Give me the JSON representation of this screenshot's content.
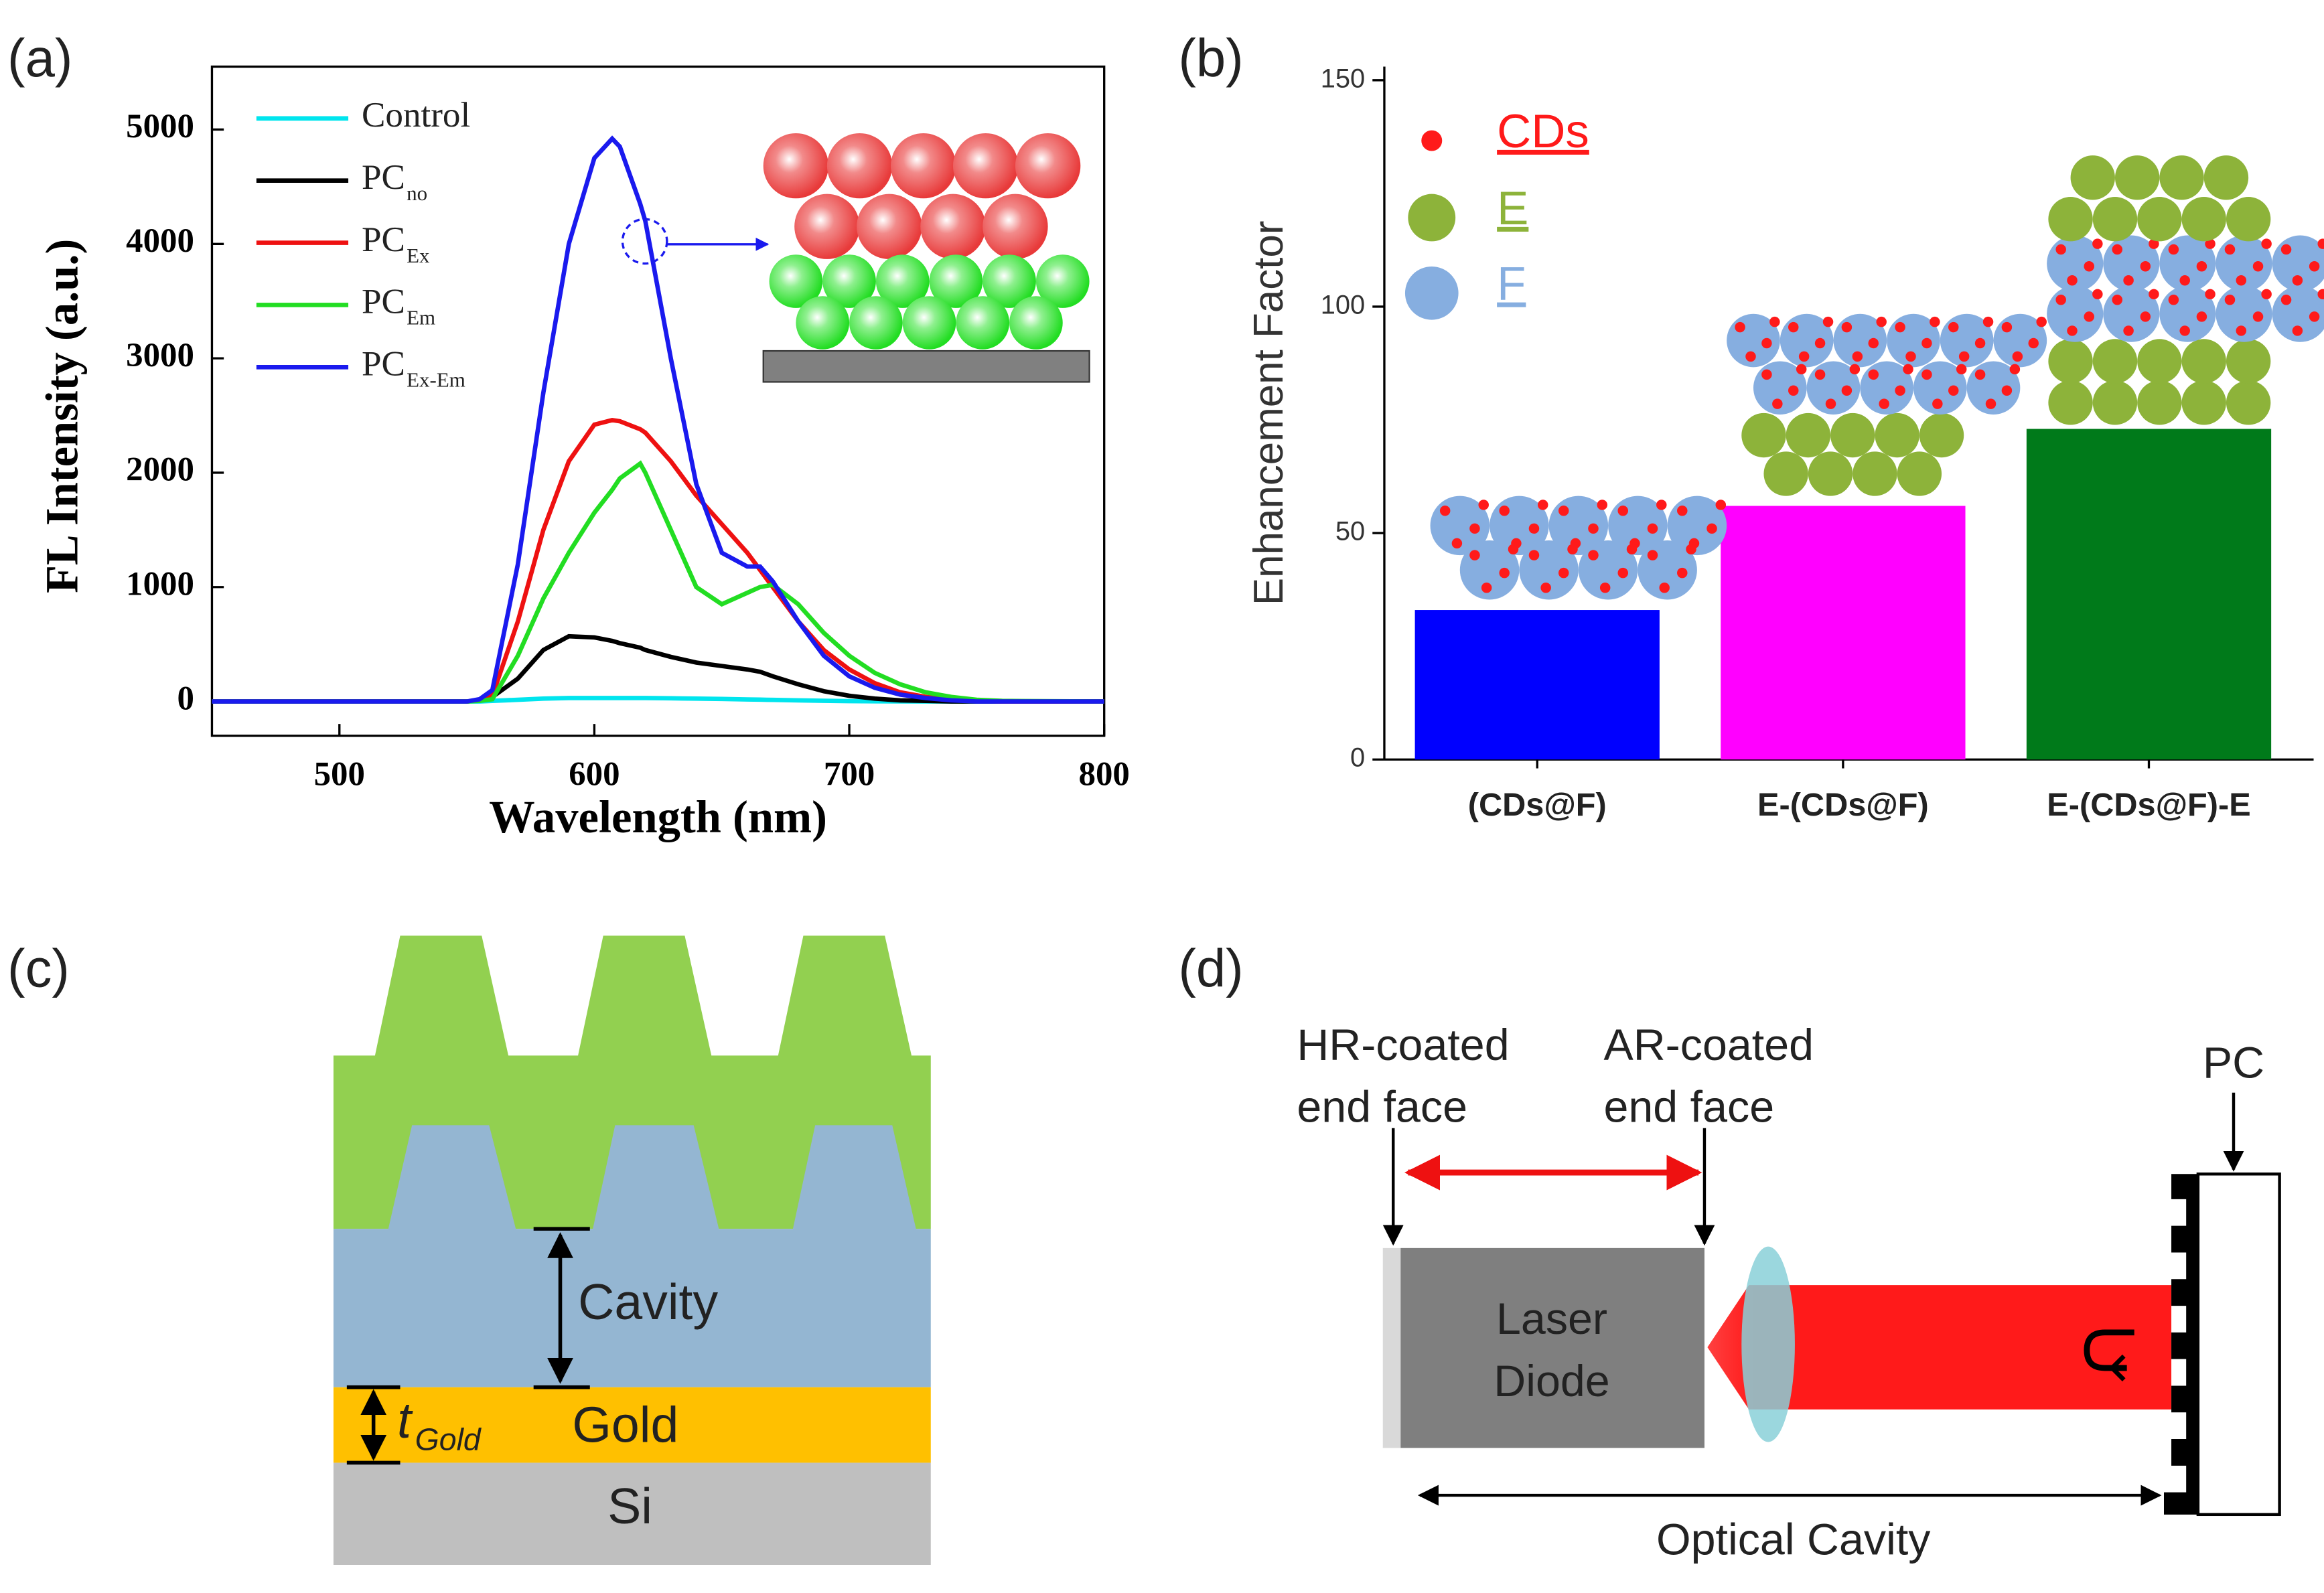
{
  "panel_labels": [
    "(a)",
    "(b)",
    "(c)",
    "(d)"
  ],
  "chart_data": [
    {
      "type": "line",
      "x_label": "Wavelength (nm)",
      "y_label": "FL Intensity (a.u.)",
      "x": [
        450,
        500,
        550,
        555,
        560,
        570,
        580,
        590,
        600,
        607,
        610,
        618,
        620,
        630,
        640,
        650,
        660,
        665,
        670,
        680,
        690,
        700,
        710,
        720,
        730,
        740,
        750,
        760,
        800
      ],
      "series": [
        {
          "name": "Control",
          "color": "#00e5ee",
          "values": [
            0,
            0,
            0,
            0,
            5,
            15,
            25,
            30,
            30,
            30,
            30,
            30,
            30,
            28,
            25,
            22,
            18,
            16,
            14,
            10,
            6,
            3,
            2,
            1,
            0,
            0,
            0,
            0,
            0
          ]
        },
        {
          "name": "PC",
          "subscript": "no",
          "color": "#000000",
          "values": [
            0,
            0,
            0,
            10,
            40,
            200,
            450,
            570,
            560,
            530,
            510,
            470,
            450,
            390,
            340,
            310,
            280,
            260,
            220,
            150,
            90,
            50,
            25,
            10,
            5,
            0,
            0,
            0,
            0
          ]
        },
        {
          "name": "PC",
          "subscript": "Ex",
          "color": "#ee1111",
          "values": [
            0,
            0,
            0,
            10,
            50,
            700,
            1500,
            2100,
            2420,
            2460,
            2450,
            2380,
            2350,
            2100,
            1800,
            1550,
            1300,
            1150,
            1000,
            700,
            450,
            280,
            160,
            80,
            40,
            15,
            5,
            0,
            0
          ]
        },
        {
          "name": "PC",
          "subscript": "Em",
          "color": "#22dd22",
          "values": [
            0,
            0,
            0,
            5,
            20,
            400,
            900,
            1300,
            1650,
            1850,
            1950,
            2080,
            2000,
            1500,
            1000,
            850,
            950,
            1000,
            1020,
            850,
            600,
            400,
            250,
            150,
            80,
            40,
            15,
            5,
            0
          ]
        },
        {
          "name": "PC",
          "subscript": "Ex-Em",
          "color": "#1a1aee",
          "values": [
            0,
            0,
            0,
            20,
            100,
            1200,
            2700,
            4000,
            4750,
            4920,
            4850,
            4350,
            4200,
            3000,
            1900,
            1300,
            1180,
            1180,
            1050,
            700,
            400,
            220,
            120,
            60,
            30,
            10,
            0,
            0,
            0
          ]
        }
      ],
      "xlim": [
        450,
        800
      ],
      "ylim": [
        -300,
        5550
      ],
      "xticks": [
        500,
        600,
        700,
        800
      ],
      "yticks": [
        0,
        1000,
        2000,
        3000,
        4000,
        5000
      ]
    },
    {
      "type": "bar",
      "y_label": "Enhancement Factor",
      "categories": [
        "(CDs@F)",
        "E-(CDs@F)",
        "E-(CDs@F)-E"
      ],
      "values": [
        33,
        56,
        73
      ],
      "colors": [
        "#0000ff",
        "#ff00ff",
        "#007a1a"
      ],
      "ylim": [
        0,
        153
      ],
      "yticks": [
        0,
        50,
        100,
        150
      ],
      "legend": [
        {
          "label": "CDs",
          "color": "#ff1a1a"
        },
        {
          "label": "E",
          "color": "#8db33a"
        },
        {
          "label": "F",
          "color": "#86aee0"
        }
      ]
    }
  ],
  "diagram_c": {
    "cavity": "Cavity",
    "gold": "Gold",
    "si": "Si",
    "thickness": {
      "symbol": "t",
      "subscript": "Gold"
    }
  },
  "diagram_d": {
    "hr_label": [
      "HR-coated",
      "end face"
    ],
    "ar_label": [
      "AR-coated",
      "end face"
    ],
    "pc": "PC",
    "laser_diode": [
      "Laser",
      "Diode"
    ],
    "optical_cavity": "Optical Cavity"
  }
}
